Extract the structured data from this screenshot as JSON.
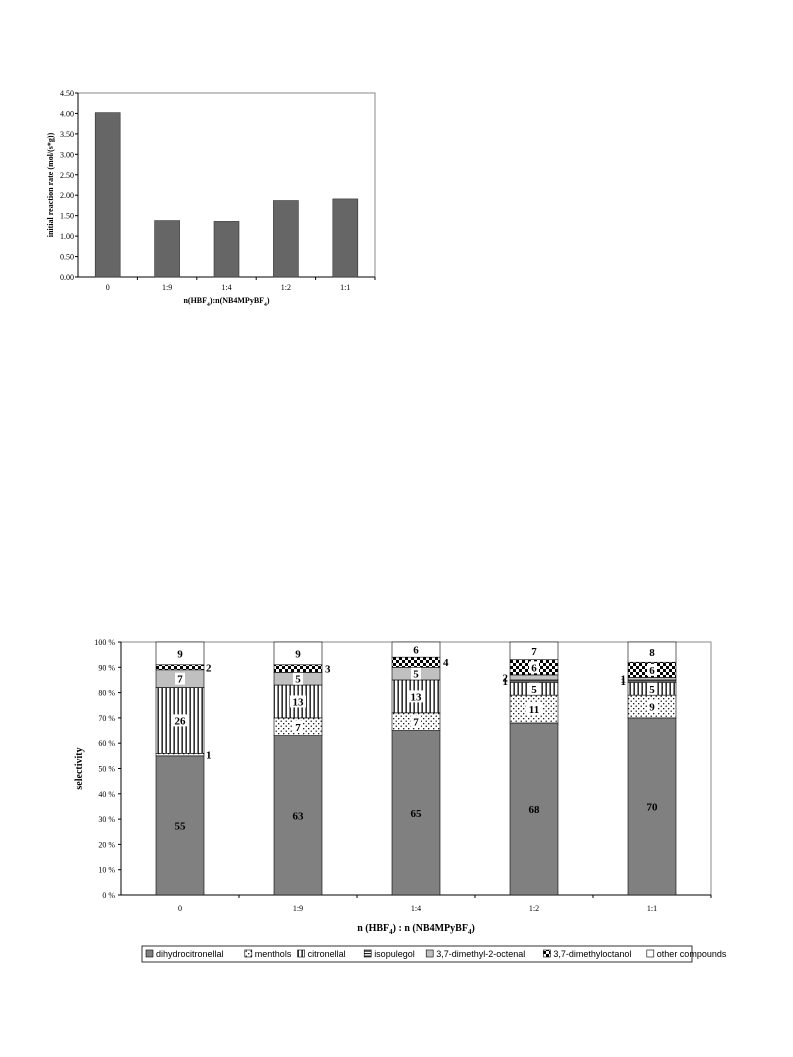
{
  "chart_data": [
    {
      "type": "bar",
      "categories": [
        "0",
        "1:9",
        "1:4",
        "1:2",
        "1:1"
      ],
      "values": [
        4.02,
        1.38,
        1.36,
        1.87,
        1.91
      ],
      "ylim": [
        0,
        4.5
      ],
      "yticks": [
        "0.00",
        "0.50",
        "1.00",
        "1.50",
        "2.00",
        "2.50",
        "3.00",
        "3.50",
        "4.00",
        "4.50"
      ],
      "ylabel": "initial reaction rate (mol/(s*g))",
      "xlabel_parts": [
        "n(HBF",
        "4",
        "):n(NB4MPyBF",
        "4",
        ")"
      ],
      "grid": false,
      "colors": {
        "bar": "#666666",
        "plot_bg": "#ffffff",
        "frame": "#888888"
      }
    },
    {
      "type": "bar",
      "stacked": true,
      "categories": [
        "0",
        "1:9",
        "1:4",
        "1:2",
        "1:1"
      ],
      "ylim": [
        0,
        100
      ],
      "yticks": [
        "0 %",
        "10 %",
        "20 %",
        "30 %",
        "40 %",
        "50 %",
        "60 %",
        "70 %",
        "80 %",
        "90 %",
        "100 %"
      ],
      "ylabel": "selectivity",
      "xlabel_parts": [
        "n (HBF",
        "4",
        ") : n (NB4MPyBF",
        "4",
        ")"
      ],
      "legend_position": "bottom",
      "series": [
        {
          "name": "dihydrocitronellal",
          "values": [
            55,
            63,
            65,
            68,
            70
          ],
          "labels": [
            "55",
            "63",
            "65",
            "68",
            "70"
          ],
          "pattern": "gray-fill"
        },
        {
          "name": "menthols",
          "values": [
            1,
            7,
            7,
            11,
            9
          ],
          "labels": [
            "1",
            "7",
            "7",
            "11",
            "9"
          ],
          "pattern": "dots"
        },
        {
          "name": "citronellal",
          "values": [
            26,
            13,
            13,
            5,
            5
          ],
          "labels": [
            "26",
            "13",
            "13",
            "5",
            "5"
          ],
          "pattern": "vertical-lines"
        },
        {
          "name": "isopulegol",
          "values": [
            0,
            0,
            0,
            1,
            1
          ],
          "labels": [
            "",
            "",
            "",
            "1",
            "1"
          ],
          "pattern": "horizontal-lines"
        },
        {
          "name": "3,7-dimethyl-2-octenal",
          "values": [
            7,
            5,
            5,
            2,
            1
          ],
          "labels": [
            "7",
            "5",
            "5",
            "2",
            "1"
          ],
          "pattern": "light-gray"
        },
        {
          "name": "3,7-dimethyloctanol",
          "values": [
            2,
            3,
            4,
            6,
            6
          ],
          "labels": [
            "2",
            "3",
            "4",
            "6",
            "6"
          ],
          "pattern": "checker"
        },
        {
          "name": "other compounds",
          "values": [
            9,
            9,
            6,
            7,
            8
          ],
          "labels": [
            "9",
            "9",
            "6",
            "7",
            "8"
          ],
          "pattern": "white"
        }
      ]
    }
  ]
}
